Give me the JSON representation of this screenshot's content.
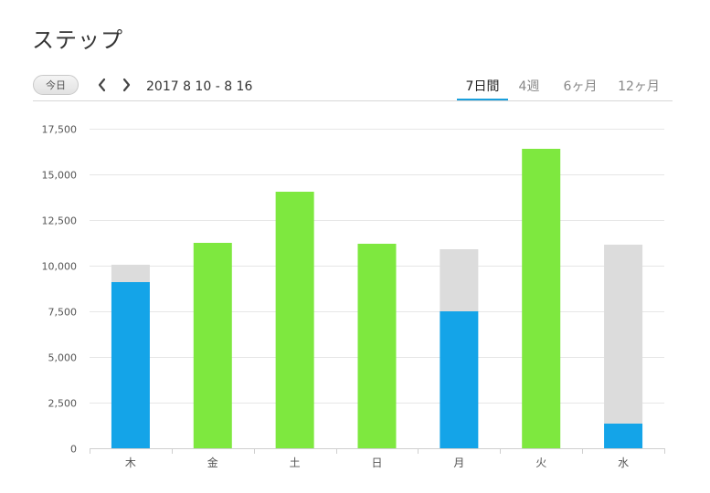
{
  "page": {
    "title": "ステップ"
  },
  "toolbar": {
    "today_label": "今日",
    "prev_icon": "chevron-left-icon",
    "next_icon": "chevron-right-icon",
    "date_range": "2017 8 10 - 8 16",
    "tabs": [
      {
        "label": "7日間",
        "active": true
      },
      {
        "label": "4週",
        "active": false
      },
      {
        "label": "6ヶ月",
        "active": false
      },
      {
        "label": "12ヶ月",
        "active": false
      }
    ]
  },
  "colors": {
    "goal_met": "#7ee83f",
    "progress": "#14a4e8",
    "remaining": "#dcdcdc",
    "grid": "#e6e6e6",
    "active_tab": "#1a9fdc"
  },
  "chart_data": {
    "type": "bar",
    "stacked": true,
    "categories": [
      "木",
      "金",
      "土",
      "日",
      "月",
      "火",
      "水"
    ],
    "ylim": [
      0,
      17500
    ],
    "yticks": [
      0,
      2500,
      5000,
      7500,
      10000,
      12500,
      15000,
      17500
    ],
    "ytick_labels": [
      "0",
      "2,500",
      "5,000",
      "7,500",
      "10,000",
      "12,500",
      "15,000",
      "17,500"
    ],
    "grid": true,
    "legend": "none",
    "series": [
      {
        "color": "#7ee83f",
        "values": [
          0,
          11250,
          14050,
          11200,
          0,
          16400,
          0
        ]
      },
      {
        "color": "#14a4e8",
        "values": [
          9100,
          0,
          0,
          0,
          7500,
          0,
          1350
        ]
      },
      {
        "color": "#dcdcdc",
        "values": [
          950,
          0,
          0,
          0,
          3400,
          0,
          9800
        ]
      }
    ]
  }
}
